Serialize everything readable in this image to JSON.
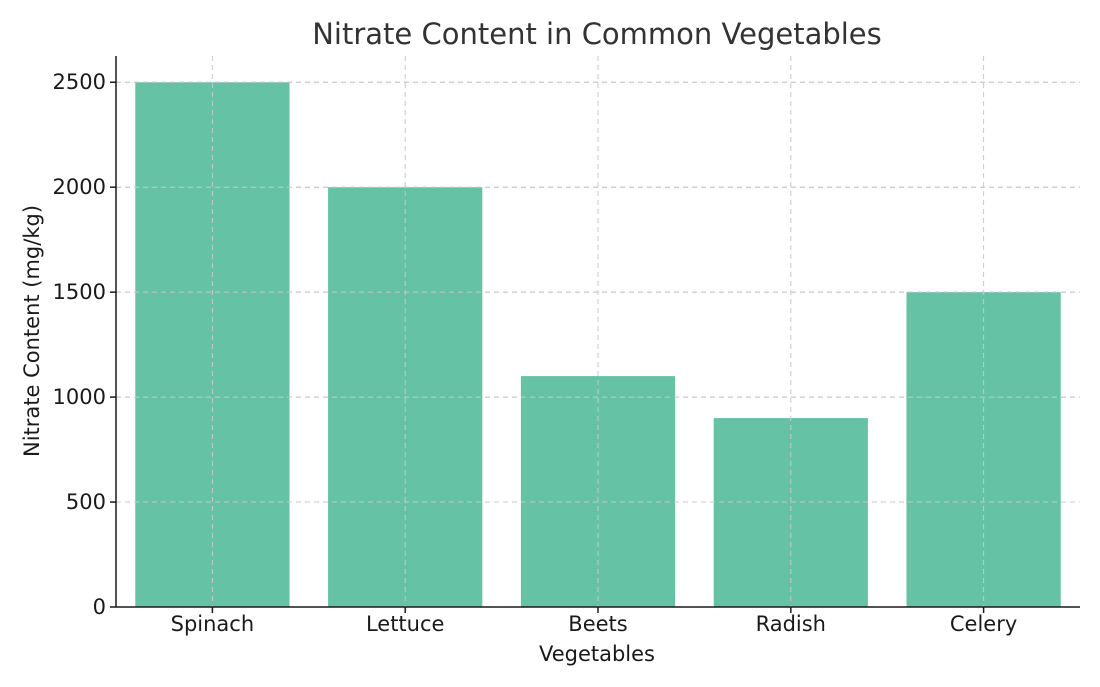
{
  "chart_data": {
    "type": "bar",
    "title": "Nitrate Content in Common Vegetables",
    "xlabel": "Vegetables",
    "ylabel": "Nitrate Content (mg/kg)",
    "categories": [
      "Spinach",
      "Lettuce",
      "Beets",
      "Radish",
      "Celery"
    ],
    "values": [
      2500,
      2000,
      1100,
      900,
      1500
    ],
    "ylim": [
      0,
      2625
    ],
    "yticks": [
      0,
      500,
      1000,
      1500,
      2000,
      2500
    ],
    "bar_color": "#66c2a5",
    "grid": true,
    "legend": "none"
  }
}
